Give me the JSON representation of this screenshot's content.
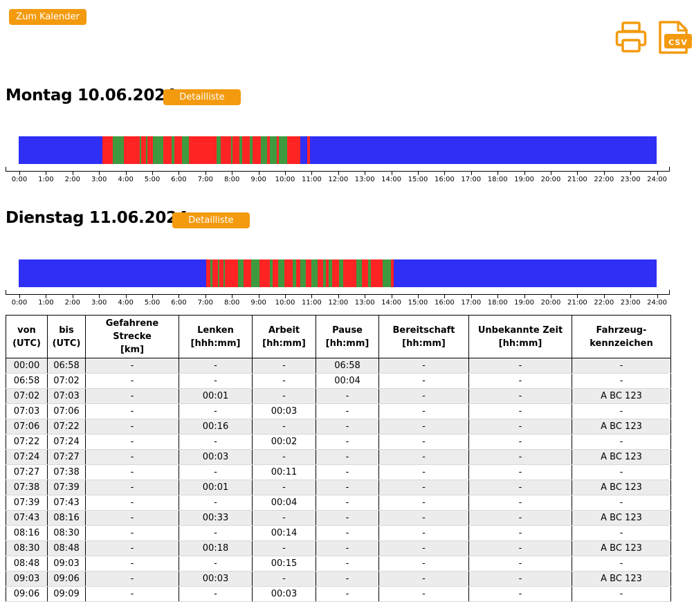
{
  "top": {
    "calendar_button": "Zum Kalender"
  },
  "icons": {
    "print": "printer-icon",
    "csv": "csv-file-icon",
    "csv_label": "CSV",
    "accent": "#f39a0e"
  },
  "colors": {
    "pause": "#2f2ff5",
    "driving": "#3f9a3f",
    "work": "#ff2424"
  },
  "days": [
    {
      "title": "Montag 10.06.2024",
      "button": "Detailliste",
      "segments": [
        [
          "00:00",
          "03:09",
          "pause"
        ],
        [
          "03:09",
          "03:33",
          "work"
        ],
        [
          "03:33",
          "03:57",
          "driving"
        ],
        [
          "03:57",
          "04:33",
          "work"
        ],
        [
          "04:33",
          "04:36",
          "driving"
        ],
        [
          "04:36",
          "04:48",
          "work"
        ],
        [
          "04:48",
          "04:51",
          "driving"
        ],
        [
          "04:51",
          "05:03",
          "work"
        ],
        [
          "05:03",
          "05:27",
          "driving"
        ],
        [
          "05:27",
          "05:45",
          "work"
        ],
        [
          "05:45",
          "05:51",
          "driving"
        ],
        [
          "05:51",
          "06:09",
          "work"
        ],
        [
          "06:09",
          "06:24",
          "driving"
        ],
        [
          "06:24",
          "07:27",
          "work"
        ],
        [
          "07:27",
          "07:36",
          "driving"
        ],
        [
          "07:36",
          "08:00",
          "work"
        ],
        [
          "08:00",
          "08:03",
          "driving"
        ],
        [
          "08:03",
          "08:18",
          "work"
        ],
        [
          "08:18",
          "08:24",
          "driving"
        ],
        [
          "08:24",
          "08:42",
          "work"
        ],
        [
          "08:42",
          "08:48",
          "driving"
        ],
        [
          "08:48",
          "09:06",
          "work"
        ],
        [
          "09:06",
          "09:21",
          "driving"
        ],
        [
          "09:21",
          "09:27",
          "work"
        ],
        [
          "09:27",
          "09:42",
          "driving"
        ],
        [
          "09:42",
          "09:48",
          "work"
        ],
        [
          "09:48",
          "10:06",
          "driving"
        ],
        [
          "10:06",
          "10:36",
          "work"
        ],
        [
          "10:36",
          "10:51",
          "pause"
        ],
        [
          "10:51",
          "10:57",
          "work"
        ],
        [
          "10:57",
          "24:00",
          "pause"
        ]
      ]
    },
    {
      "title": "Dienstag 11.06.2024",
      "button": "Detailliste",
      "segments": [
        [
          "00:00",
          "07:03",
          "pause"
        ],
        [
          "07:03",
          "07:12",
          "work"
        ],
        [
          "07:12",
          "07:18",
          "driving"
        ],
        [
          "07:18",
          "07:30",
          "work"
        ],
        [
          "07:30",
          "07:33",
          "driving"
        ],
        [
          "07:33",
          "07:42",
          "work"
        ],
        [
          "07:42",
          "07:45",
          "driving"
        ],
        [
          "07:45",
          "08:15",
          "work"
        ],
        [
          "08:15",
          "08:27",
          "driving"
        ],
        [
          "08:27",
          "08:45",
          "work"
        ],
        [
          "08:45",
          "09:03",
          "driving"
        ],
        [
          "09:03",
          "09:27",
          "work"
        ],
        [
          "09:27",
          "09:33",
          "driving"
        ],
        [
          "09:33",
          "09:45",
          "work"
        ],
        [
          "09:45",
          "10:00",
          "driving"
        ],
        [
          "10:00",
          "10:18",
          "work"
        ],
        [
          "10:18",
          "10:27",
          "driving"
        ],
        [
          "10:27",
          "10:36",
          "work"
        ],
        [
          "10:36",
          "10:48",
          "driving"
        ],
        [
          "10:48",
          "11:00",
          "work"
        ],
        [
          "11:00",
          "11:15",
          "driving"
        ],
        [
          "11:15",
          "11:27",
          "work"
        ],
        [
          "11:27",
          "11:33",
          "driving"
        ],
        [
          "11:33",
          "11:39",
          "work"
        ],
        [
          "11:39",
          "11:48",
          "driving"
        ],
        [
          "11:48",
          "12:03",
          "work"
        ],
        [
          "12:03",
          "12:12",
          "driving"
        ],
        [
          "12:12",
          "12:42",
          "work"
        ],
        [
          "12:42",
          "12:54",
          "driving"
        ],
        [
          "12:54",
          "13:09",
          "work"
        ],
        [
          "13:09",
          "13:15",
          "driving"
        ],
        [
          "13:15",
          "13:42",
          "work"
        ],
        [
          "13:42",
          "14:00",
          "driving"
        ],
        [
          "14:00",
          "14:06",
          "work"
        ],
        [
          "14:06",
          "24:00",
          "pause"
        ]
      ]
    }
  ],
  "axis_labels": [
    "0:00",
    "1:00",
    "2:00",
    "3:00",
    "4:00",
    "5:00",
    "6:00",
    "7:00",
    "8:00",
    "9:00",
    "10:00",
    "11:00",
    "12:00",
    "13:00",
    "14:00",
    "15:00",
    "16:00",
    "17:00",
    "18:00",
    "19:00",
    "20:00",
    "21:00",
    "22:00",
    "23:00",
    "24:00"
  ],
  "table": {
    "headers": [
      {
        "l1": "von",
        "l2": "(UTC)"
      },
      {
        "l1": "bis",
        "l2": "(UTC)"
      },
      {
        "l1": "Gefahrene Strecke",
        "l2": "[km]"
      },
      {
        "l1": "Lenken",
        "l2": "[hhh:mm]"
      },
      {
        "l1": "Arbeit",
        "l2": "[hh:mm]"
      },
      {
        "l1": "Pause",
        "l2": "[hh:mm]"
      },
      {
        "l1": "Bereitschaft",
        "l2": "[hh:mm]"
      },
      {
        "l1": "Unbekannte Zeit",
        "l2": "[hh:mm]"
      },
      {
        "l1": "Fahrzeug-",
        "l2": "kennzeichen"
      }
    ],
    "rows": [
      [
        "00:00",
        "06:58",
        "-",
        "-",
        "-",
        "06:58",
        "-",
        "-",
        "-"
      ],
      [
        "06:58",
        "07:02",
        "-",
        "-",
        "-",
        "00:04",
        "-",
        "-",
        "-"
      ],
      [
        "07:02",
        "07:03",
        "-",
        "00:01",
        "-",
        "-",
        "-",
        "-",
        "A BC 123"
      ],
      [
        "07:03",
        "07:06",
        "-",
        "-",
        "00:03",
        "-",
        "-",
        "-",
        "-"
      ],
      [
        "07:06",
        "07:22",
        "-",
        "00:16",
        "-",
        "-",
        "-",
        "-",
        "A BC 123"
      ],
      [
        "07:22",
        "07:24",
        "-",
        "-",
        "00:02",
        "-",
        "-",
        "-",
        "-"
      ],
      [
        "07:24",
        "07:27",
        "-",
        "00:03",
        "-",
        "-",
        "-",
        "-",
        "A BC 123"
      ],
      [
        "07:27",
        "07:38",
        "-",
        "-",
        "00:11",
        "-",
        "-",
        "-",
        "-"
      ],
      [
        "07:38",
        "07:39",
        "-",
        "00:01",
        "-",
        "-",
        "-",
        "-",
        "A BC 123"
      ],
      [
        "07:39",
        "07:43",
        "-",
        "-",
        "00:04",
        "-",
        "-",
        "-",
        "-"
      ],
      [
        "07:43",
        "08:16",
        "-",
        "00:33",
        "-",
        "-",
        "-",
        "-",
        "A BC 123"
      ],
      [
        "08:16",
        "08:30",
        "-",
        "-",
        "00:14",
        "-",
        "-",
        "-",
        "-"
      ],
      [
        "08:30",
        "08:48",
        "-",
        "00:18",
        "-",
        "-",
        "-",
        "-",
        "A BC 123"
      ],
      [
        "08:48",
        "09:03",
        "-",
        "-",
        "00:15",
        "-",
        "-",
        "-",
        "-"
      ],
      [
        "09:03",
        "09:06",
        "-",
        "00:03",
        "-",
        "-",
        "-",
        "-",
        "A BC 123"
      ],
      [
        "09:06",
        "09:09",
        "-",
        "-",
        "00:03",
        "-",
        "-",
        "-",
        "-"
      ]
    ]
  }
}
